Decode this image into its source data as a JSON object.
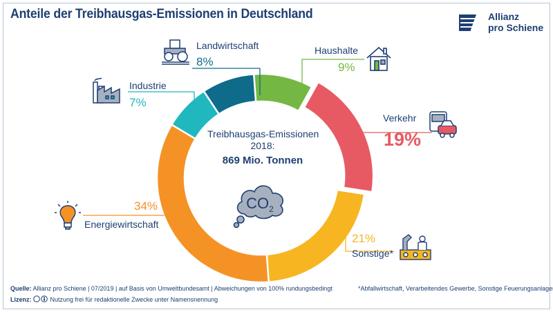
{
  "header": {
    "title": "Anteile der Treibhausgas-Emissionen in Deutschland",
    "brand_line1": "Allianz",
    "brand_line2": "pro Schiene"
  },
  "center": {
    "line1": "Treibhausgas-Emissionen",
    "line2": "2018:",
    "line3": "869 Mio. Tonnen",
    "co2": "CO",
    "co2_sub": "2"
  },
  "chart_data": {
    "type": "pie",
    "title": "Anteile der Treibhausgas-Emissionen in Deutschland",
    "total": "869 Mio. Tonnen",
    "year": "2018",
    "slices": [
      {
        "label": "Verkehr",
        "value": 19,
        "display": "19%",
        "color": "#e75a63"
      },
      {
        "label": "Sonstige*",
        "value": 21,
        "display": "21%",
        "color": "#f7b521"
      },
      {
        "label": "Energiewirtschaft",
        "value": 34,
        "display": "34%",
        "color": "#f59225"
      },
      {
        "label": "Industrie",
        "value": 7,
        "display": "7%",
        "color": "#20b7be"
      },
      {
        "label": "Landwirtschaft",
        "value": 8,
        "display": "8%",
        "color": "#0f6b8a"
      },
      {
        "label": "Haushalte",
        "value": 9,
        "display": "9%",
        "color": "#74b843"
      }
    ]
  },
  "footer": {
    "source_label": "Quelle:",
    "source_text": "Allianz pro Schiene | 07/2019 | auf Basis von Umweltbundesamt | Abweichungen von 100% rundungsbedingt",
    "license_label": "Lizenz:",
    "license_text": "Nutzung frei für redaktionelle Zwecke unter Namensnennung",
    "note": "*Abfallwirtschaft, Verarbeitendes Gewerbe, Sonstige Feuerungsanlagen"
  },
  "icons": [
    "tractor-icon",
    "house-icon",
    "factory-icon",
    "bus-car-icon",
    "lightbulb-icon",
    "industrial-worker-icon",
    "co2-cloud-icon",
    "allianz-logo-icon",
    "cc-license-icon"
  ]
}
